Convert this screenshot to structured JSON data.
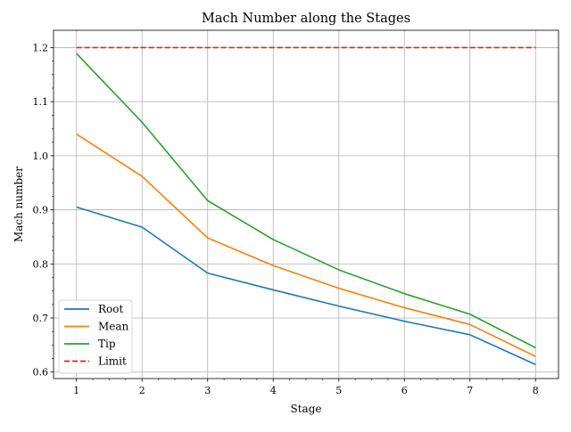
{
  "chart_data": {
    "type": "line",
    "title": "Mach Number along the Stages",
    "xlabel": "Stage",
    "ylabel": "Mach number",
    "x": [
      1,
      2,
      3,
      4,
      5,
      6,
      7,
      8
    ],
    "xlim": [
      0.65,
      8.35
    ],
    "ylim": [
      0.588,
      1.232
    ],
    "xticks": [
      1,
      2,
      3,
      4,
      5,
      6,
      7,
      8
    ],
    "xtick_labels": [
      "1",
      "2",
      "3",
      "4",
      "5",
      "6",
      "7",
      "8"
    ],
    "yticks": [
      0.6,
      0.7,
      0.8,
      0.9,
      1.0,
      1.1,
      1.2
    ],
    "ytick_labels": [
      "0.6",
      "0.7",
      "0.8",
      "0.9",
      "1.0",
      "1.1",
      "1.2"
    ],
    "grid": true,
    "legend_position": "lower-left",
    "series": [
      {
        "name": "Root",
        "color": "#1f77b4",
        "style": "solid",
        "values": [
          0.905,
          0.868,
          0.783,
          0.752,
          0.722,
          0.694,
          0.669,
          0.614
        ]
      },
      {
        "name": "Mean",
        "color": "#ff7f0e",
        "style": "solid",
        "values": [
          1.04,
          0.962,
          0.848,
          0.797,
          0.755,
          0.719,
          0.688,
          0.629
        ]
      },
      {
        "name": "Tip",
        "color": "#2ca02c",
        "style": "solid",
        "values": [
          1.189,
          1.062,
          0.917,
          0.845,
          0.789,
          0.745,
          0.707,
          0.645
        ]
      },
      {
        "name": "Limit",
        "color": "#d62728",
        "style": "dashed",
        "values": [
          1.2,
          1.2,
          1.2,
          1.2,
          1.2,
          1.2,
          1.2,
          1.2
        ]
      }
    ]
  }
}
